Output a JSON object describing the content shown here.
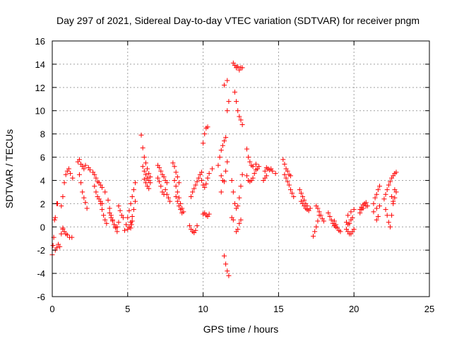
{
  "chart_data": {
    "type": "scatter",
    "title": "Day 297 of 2021, Sidereal Day-to-day VTEC variation (SDTVAR) for receiver pngm",
    "xlabel": "GPS time / hours",
    "ylabel": "SDTVAR / TECUs",
    "xlim": [
      0,
      25
    ],
    "ylim": [
      -6,
      16
    ],
    "xticks": [
      0,
      5,
      10,
      15,
      20,
      25
    ],
    "yticks": [
      -6,
      -4,
      -2,
      0,
      2,
      4,
      6,
      8,
      10,
      12,
      14,
      16
    ],
    "grid": true,
    "marker": "+",
    "color": "#ff0000",
    "segments": [
      {
        "x": [
          0.0,
          0.05,
          0.1,
          0.15,
          0.2
        ],
        "y": [
          -2.4,
          -1.6,
          -0.9,
          0.6,
          0.8
        ]
      },
      {
        "x": [
          0.2,
          0.3,
          0.4
        ],
        "y": [
          -2.0,
          -1.8,
          -1.5
        ]
      },
      {
        "x": [
          0.5,
          0.6,
          0.7
        ],
        "y": [
          -1.7,
          -0.6,
          -0.2
        ]
      },
      {
        "x": [
          0.3,
          0.35
        ],
        "y": [
          2.0,
          2.0
        ]
      },
      {
        "x": [
          0.6,
          0.7,
          0.8,
          0.9,
          1.0,
          1.1,
          1.2,
          1.35
        ],
        "y": [
          1.8,
          2.6,
          3.8,
          4.5,
          4.8,
          5.0,
          4.6,
          4.2
        ]
      },
      {
        "x": [
          0.7,
          0.8,
          0.9,
          1.0,
          1.15,
          1.3
        ],
        "y": [
          -0.1,
          -0.4,
          -0.6,
          -0.7,
          -0.9,
          -0.9
        ]
      },
      {
        "x": [
          1.7,
          1.8,
          1.9,
          2.0,
          2.1,
          2.2,
          2.4,
          2.5
        ],
        "y": [
          5.6,
          5.8,
          5.4,
          5.2,
          5.0,
          5.3,
          5.1,
          4.9
        ]
      },
      {
        "x": [
          1.8,
          1.9,
          2.0,
          2.1,
          2.2
        ],
        "y": [
          4.5,
          3.8,
          3.0,
          2.5,
          2.1
        ]
      },
      {
        "x": [
          2.3
        ],
        "y": [
          1.6
        ]
      },
      {
        "x": [
          2.7,
          2.8,
          2.9,
          3.0,
          3.1,
          3.2,
          3.3,
          3.5
        ],
        "y": [
          4.7,
          4.5,
          4.2,
          3.9,
          3.8,
          3.6,
          3.4,
          3.0
        ]
      },
      {
        "x": [
          2.8,
          2.9,
          3.0,
          3.1,
          3.2,
          3.3
        ],
        "y": [
          3.5,
          3.0,
          2.6,
          2.4,
          2.2,
          2.0
        ]
      },
      {
        "x": [
          3.2,
          3.3,
          3.4,
          3.5,
          3.6
        ],
        "y": [
          2.0,
          1.5,
          1.0,
          0.6,
          0.3
        ]
      },
      {
        "x": [
          3.7,
          3.8,
          3.9,
          4.0,
          4.1,
          4.2,
          4.3,
          4.4
        ],
        "y": [
          2.3,
          1.6,
          1.0,
          0.6,
          0.2,
          -0.1,
          0.0,
          0.4
        ]
      },
      {
        "x": [
          3.8,
          3.9,
          4.0,
          4.1,
          4.2,
          4.3
        ],
        "y": [
          1.2,
          0.8,
          0.5,
          0.2,
          0.0,
          -0.4
        ]
      },
      {
        "x": [
          4.4,
          4.5,
          4.6,
          4.7
        ],
        "y": [
          1.8,
          1.4,
          1.0,
          0.8
        ]
      },
      {
        "x": [
          4.8,
          4.9,
          5.0,
          5.1,
          5.2,
          5.3,
          5.4,
          5.5
        ],
        "y": [
          -0.3,
          0.2,
          0.8,
          1.4,
          2.0,
          2.6,
          3.2,
          3.8
        ]
      },
      {
        "x": [
          5.0,
          5.1,
          5.2,
          5.3,
          5.4,
          5.5
        ],
        "y": [
          -0.2,
          0.0,
          0.4,
          0.9,
          1.5,
          2.2
        ]
      },
      {
        "x": [
          5.2,
          5.25,
          5.3
        ],
        "y": [
          -0.1,
          0.2,
          0.5
        ]
      },
      {
        "x": [
          5.9,
          6.0,
          6.1,
          6.2,
          6.3,
          6.4,
          6.5
        ],
        "y": [
          7.9,
          6.8,
          6.0,
          5.5,
          5.0,
          4.6,
          4.3
        ]
      },
      {
        "x": [
          6.0,
          6.1,
          6.2,
          6.3,
          6.4,
          6.5
        ],
        "y": [
          5.2,
          4.8,
          4.5,
          4.2,
          4.0,
          3.8
        ]
      },
      {
        "x": [
          6.1,
          6.2,
          6.3,
          6.4
        ],
        "y": [
          4.1,
          3.8,
          3.5,
          3.3
        ]
      },
      {
        "x": [
          7.0,
          7.1,
          7.2,
          7.3,
          7.4,
          7.5,
          7.6
        ],
        "y": [
          5.3,
          5.1,
          4.8,
          4.5,
          4.3,
          4.0,
          3.8
        ]
      },
      {
        "x": [
          7.0,
          7.1,
          7.2,
          7.3,
          7.4
        ],
        "y": [
          4.2,
          3.9,
          3.5,
          3.0,
          2.8
        ]
      },
      {
        "x": [
          7.5,
          7.6,
          7.7,
          7.8
        ],
        "y": [
          3.2,
          2.8,
          2.5,
          2.2
        ]
      },
      {
        "x": [
          8.0,
          8.1,
          8.2,
          8.3,
          8.4
        ],
        "y": [
          5.5,
          5.2,
          4.7,
          4.3,
          3.8
        ]
      },
      {
        "x": [
          8.1,
          8.2,
          8.3,
          8.4,
          8.5,
          8.6,
          8.7
        ],
        "y": [
          4.0,
          3.5,
          3.0,
          2.5,
          2.0,
          1.6,
          1.3
        ]
      },
      {
        "x": [
          8.2,
          8.3,
          8.4,
          8.5,
          8.6
        ],
        "y": [
          2.6,
          2.2,
          1.8,
          1.5,
          1.2
        ]
      },
      {
        "x": [
          9.1,
          9.2,
          9.3,
          9.4,
          9.5,
          9.6
        ],
        "y": [
          0.1,
          -0.2,
          -0.4,
          -0.5,
          -0.3,
          0.1
        ]
      },
      {
        "x": [
          9.2,
          9.3,
          9.4,
          9.5,
          9.6,
          9.7,
          9.8,
          9.9
        ],
        "y": [
          2.6,
          3.0,
          3.3,
          3.6,
          3.9,
          4.2,
          4.5,
          4.7
        ]
      },
      {
        "x": [
          9.9,
          10.0,
          10.1,
          10.2,
          10.3,
          10.4,
          10.6
        ],
        "y": [
          4.0,
          3.6,
          3.4,
          3.7,
          4.2,
          4.6,
          5.0
        ]
      },
      {
        "x": [
          10.0,
          10.1,
          10.2,
          10.3,
          10.4
        ],
        "y": [
          1.1,
          1.2,
          1.0,
          0.9,
          1.1
        ]
      },
      {
        "x": [
          10.0,
          10.1,
          10.2,
          10.3
        ],
        "y": [
          7.2,
          8.0,
          8.5,
          8.6
        ]
      },
      {
        "x": [
          11.0,
          11.1,
          11.2,
          11.3,
          11.4,
          11.5
        ],
        "y": [
          5.3,
          6.0,
          6.6,
          7.0,
          7.4,
          7.7
        ]
      },
      {
        "x": [
          11.2,
          11.3,
          11.4,
          11.5,
          11.6
        ],
        "y": [
          4.4,
          4.0,
          3.9,
          4.8,
          5.6
        ]
      },
      {
        "x": [
          11.2
        ],
        "y": [
          3.0
        ]
      },
      {
        "x": [
          11.4,
          11.5,
          11.6,
          11.7
        ],
        "y": [
          -2.5,
          -3.2,
          -3.8,
          -4.2
        ]
      },
      {
        "x": [
          11.4,
          11.6
        ],
        "y": [
          12.2,
          12.6
        ]
      },
      {
        "x": [
          11.6,
          11.7
        ],
        "y": [
          10.0,
          10.8
        ]
      },
      {
        "x": [
          12.0,
          12.1,
          12.2,
          12.3,
          12.4,
          12.5,
          12.6
        ],
        "y": [
          14.1,
          13.9,
          13.7,
          13.8,
          13.5,
          13.7,
          13.7
        ]
      },
      {
        "x": [
          11.9,
          12.0,
          12.1,
          12.2,
          12.3,
          12.4,
          12.5,
          12.6
        ],
        "y": [
          4.0,
          3.0,
          2.0,
          1.6,
          1.8,
          2.5,
          3.5,
          4.5
        ]
      },
      {
        "x": [
          11.9,
          12.0
        ],
        "y": [
          0.8,
          0.6
        ]
      },
      {
        "x": [
          12.1,
          12.2,
          12.3,
          12.4,
          12.5,
          12.6
        ],
        "y": [
          11.6,
          10.8,
          10.0,
          9.5,
          9.2,
          8.8
        ]
      },
      {
        "x": [
          12.2,
          12.3,
          12.4,
          12.5
        ],
        "y": [
          -0.4,
          -0.2,
          0.3,
          0.6
        ]
      },
      {
        "x": [
          12.9,
          13.0,
          13.1,
          13.2,
          13.3,
          13.5
        ],
        "y": [
          6.7,
          6.0,
          5.6,
          5.3,
          5.2,
          5.4
        ]
      },
      {
        "x": [
          12.9,
          13.0,
          13.1,
          13.2,
          13.3,
          13.4,
          13.5,
          13.6,
          13.7
        ],
        "y": [
          4.4,
          4.0,
          3.9,
          4.0,
          4.2,
          4.6,
          4.9,
          5.0,
          5.2
        ]
      },
      {
        "x": [
          14.1,
          14.2,
          14.3,
          14.4,
          14.5,
          14.6,
          14.8
        ],
        "y": [
          4.8,
          5.1,
          5.0,
          4.9,
          5.0,
          4.8,
          4.6
        ]
      },
      {
        "x": [
          14.0,
          14.1,
          14.2
        ],
        "y": [
          4.0,
          4.2,
          4.4
        ]
      },
      {
        "x": [
          15.3,
          15.4,
          15.5,
          15.6,
          15.7,
          15.8
        ],
        "y": [
          5.8,
          5.4,
          5.0,
          4.8,
          4.5,
          4.4
        ]
      },
      {
        "x": [
          15.4,
          15.5,
          15.6,
          15.7,
          15.8,
          15.9,
          16.0
        ],
        "y": [
          4.5,
          4.2,
          3.9,
          3.6,
          3.2,
          2.9,
          2.6
        ]
      },
      {
        "x": [
          16.4,
          16.5,
          16.6,
          16.7,
          16.8,
          16.9
        ],
        "y": [
          3.2,
          2.9,
          2.6,
          2.3,
          2.0,
          1.8
        ]
      },
      {
        "x": [
          16.5,
          16.6,
          16.7,
          16.8,
          16.9,
          17.0,
          17.1
        ],
        "y": [
          2.2,
          2.0,
          1.8,
          1.6,
          1.5,
          1.4,
          1.6
        ]
      },
      {
        "x": [
          17.3,
          17.4,
          17.5,
          17.6,
          17.7
        ],
        "y": [
          -0.8,
          -0.4,
          0.0,
          0.5,
          1.0
        ]
      },
      {
        "x": [
          17.5,
          17.6,
          17.7,
          17.8,
          17.9,
          18.0
        ],
        "y": [
          1.8,
          1.6,
          1.3,
          1.0,
          0.7,
          0.5
        ]
      },
      {
        "x": [
          18.3,
          18.4,
          18.5,
          18.6,
          18.7,
          18.8
        ],
        "y": [
          1.2,
          0.9,
          0.6,
          0.3,
          0.1,
          0.0
        ]
      },
      {
        "x": [
          18.7,
          18.8,
          18.9,
          19.0,
          19.1
        ],
        "y": [
          0.5,
          0.2,
          -0.1,
          -0.3,
          -0.4
        ]
      },
      {
        "x": [
          19.5,
          19.6,
          19.7,
          19.8,
          19.9,
          20.0
        ],
        "y": [
          -0.2,
          -0.4,
          -0.6,
          -0.6,
          -0.4,
          -0.2
        ]
      },
      {
        "x": [
          19.5,
          19.6,
          19.7,
          19.8,
          19.9
        ],
        "y": [
          0.4,
          0.2,
          0.3,
          0.6,
          0.8
        ]
      },
      {
        "x": [
          19.6,
          19.8,
          20.0
        ],
        "y": [
          1.0,
          1.3,
          1.5
        ]
      },
      {
        "x": [
          20.4,
          20.5,
          20.6,
          20.7,
          20.8,
          20.9
        ],
        "y": [
          1.5,
          1.7,
          1.9,
          2.0,
          2.1,
          1.8
        ]
      },
      {
        "x": [
          20.4,
          20.5,
          20.6,
          20.8
        ],
        "y": [
          1.2,
          1.5,
          1.6,
          1.8
        ]
      },
      {
        "x": [
          21.3,
          21.4,
          21.5,
          21.6,
          21.7
        ],
        "y": [
          2.0,
          2.5,
          2.8,
          3.2,
          3.5
        ]
      },
      {
        "x": [
          21.3,
          21.5,
          21.7
        ],
        "y": [
          1.3,
          1.6,
          1.8
        ]
      },
      {
        "x": [
          21.5,
          21.6
        ],
        "y": [
          0.6,
          0.9
        ]
      },
      {
        "x": [
          22.0,
          22.1,
          22.2,
          22.3,
          22.4,
          22.5,
          22.6,
          22.7,
          22.8
        ],
        "y": [
          2.4,
          2.8,
          3.2,
          3.6,
          3.9,
          4.2,
          4.4,
          4.6,
          4.7
        ]
      },
      {
        "x": [
          22.1,
          22.2,
          22.3,
          22.4,
          22.5,
          22.6,
          22.7
        ],
        "y": [
          1.5,
          1.0,
          0.4,
          0.0,
          1.0,
          2.0,
          3.2
        ]
      },
      {
        "x": [
          22.5,
          22.6,
          22.7,
          22.8
        ],
        "y": [
          2.6,
          2.2,
          2.5,
          3.0
        ]
      }
    ]
  }
}
